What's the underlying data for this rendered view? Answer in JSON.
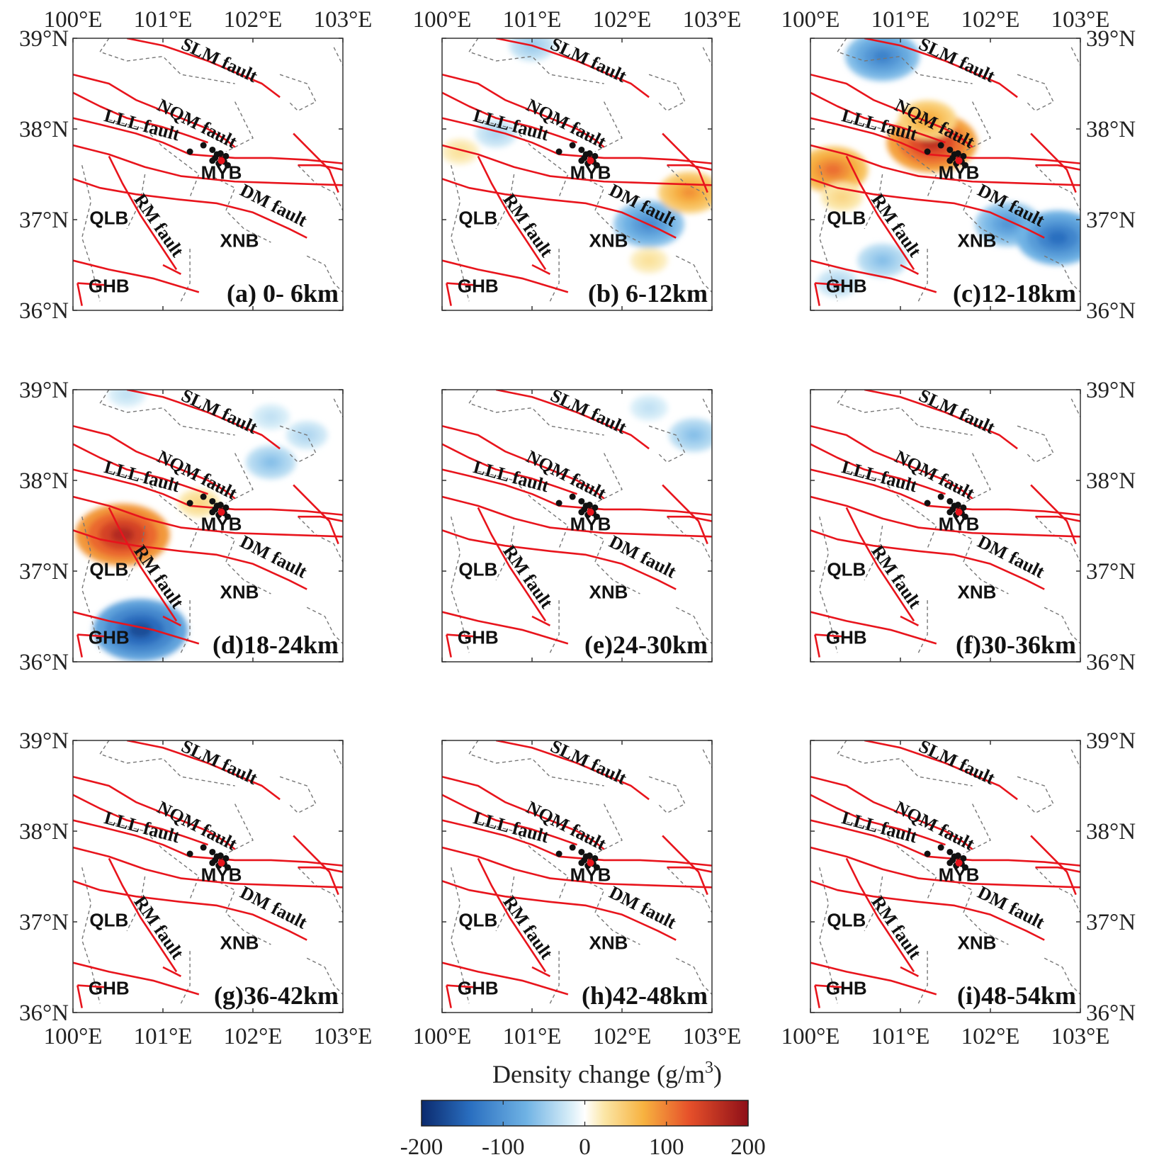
{
  "figure": {
    "panels": [
      {
        "id": "a",
        "label": "(a) 0- 6km",
        "anomalies": []
      },
      {
        "id": "b",
        "label": "(b) 6-12km",
        "anomalies": [
          {
            "lon": 101.0,
            "lat": 38.92,
            "value": -50
          },
          {
            "lon": 100.6,
            "lat": 37.95,
            "value": -40
          },
          {
            "lon": 100.2,
            "lat": 37.75,
            "value": 30
          },
          {
            "lon": 102.3,
            "lat": 36.95,
            "value": -110
          },
          {
            "lon": 102.75,
            "lat": 37.3,
            "value": 90
          },
          {
            "lon": 102.3,
            "lat": 36.55,
            "value": 30
          }
        ]
      },
      {
        "id": "c",
        "label": "(c)12-18km",
        "anomalies": [
          {
            "lon": 100.8,
            "lat": 38.8,
            "value": -120
          },
          {
            "lon": 101.35,
            "lat": 37.85,
            "value": 160
          },
          {
            "lon": 101.3,
            "lat": 38.1,
            "value": 80
          },
          {
            "lon": 100.25,
            "lat": 37.55,
            "value": 110
          },
          {
            "lon": 100.35,
            "lat": 37.25,
            "value": 40
          },
          {
            "lon": 102.2,
            "lat": 36.95,
            "value": -100
          },
          {
            "lon": 102.75,
            "lat": 36.8,
            "value": -140
          },
          {
            "lon": 100.8,
            "lat": 36.55,
            "value": -60
          },
          {
            "lon": 100.3,
            "lat": 36.3,
            "value": -40
          }
        ]
      },
      {
        "id": "d",
        "label": "(d)18-24km",
        "anomalies": [
          {
            "lon": 100.55,
            "lat": 37.4,
            "value": 170
          },
          {
            "lon": 100.75,
            "lat": 36.35,
            "value": -170
          },
          {
            "lon": 102.2,
            "lat": 38.2,
            "value": -60
          },
          {
            "lon": 102.6,
            "lat": 38.5,
            "value": -40
          },
          {
            "lon": 102.2,
            "lat": 38.7,
            "value": -30
          },
          {
            "lon": 100.6,
            "lat": 38.95,
            "value": -30
          },
          {
            "lon": 101.4,
            "lat": 37.75,
            "value": 40
          }
        ]
      },
      {
        "id": "e",
        "label": "(e)24-30km",
        "anomalies": [
          {
            "lon": 102.8,
            "lat": 38.5,
            "value": -60
          },
          {
            "lon": 102.3,
            "lat": 38.8,
            "value": -30
          }
        ]
      },
      {
        "id": "f",
        "label": "(f)30-36km",
        "anomalies": []
      },
      {
        "id": "g",
        "label": "(g)36-42km",
        "anomalies": []
      },
      {
        "id": "h",
        "label": "(h)42-48km",
        "anomalies": []
      },
      {
        "id": "i",
        "label": "(i)48-54km",
        "anomalies": []
      }
    ],
    "x_ticks": [
      "100°E",
      "101°E",
      "102°E",
      "103°E"
    ],
    "y_ticks": [
      "36°N",
      "37°N",
      "38°N",
      "39°N"
    ],
    "lon_range": [
      100,
      103
    ],
    "lat_range": [
      36,
      39
    ],
    "fault_labels": [
      {
        "text": "SLM fault",
        "lon": 101.6,
        "lat": 38.7,
        "angle": 25
      },
      {
        "text": "NQM fault",
        "lon": 101.35,
        "lat": 38.0,
        "angle": 27
      },
      {
        "text": "LLL fault",
        "lon": 100.75,
        "lat": 37.98,
        "angle": 15
      },
      {
        "text": "RM fault",
        "lon": 100.9,
        "lat": 36.9,
        "angle": 55
      },
      {
        "text": "DM fault",
        "lon": 102.2,
        "lat": 37.1,
        "angle": 27
      }
    ],
    "basin_labels": [
      {
        "text": "QLB",
        "lon": 100.4,
        "lat": 36.95
      },
      {
        "text": "XNB",
        "lon": 101.85,
        "lat": 36.7
      },
      {
        "text": "MYB",
        "lon": 101.65,
        "lat": 37.45
      },
      {
        "text": "GHB",
        "lon": 100.4,
        "lat": 36.2
      }
    ],
    "colorbar": {
      "title": "Density change (g/m",
      "title_sup": "3",
      "title_end": ")",
      "ticks": [
        "-200",
        "-100",
        "0",
        "100",
        "200"
      ],
      "min": -200,
      "max": 200
    }
  }
}
